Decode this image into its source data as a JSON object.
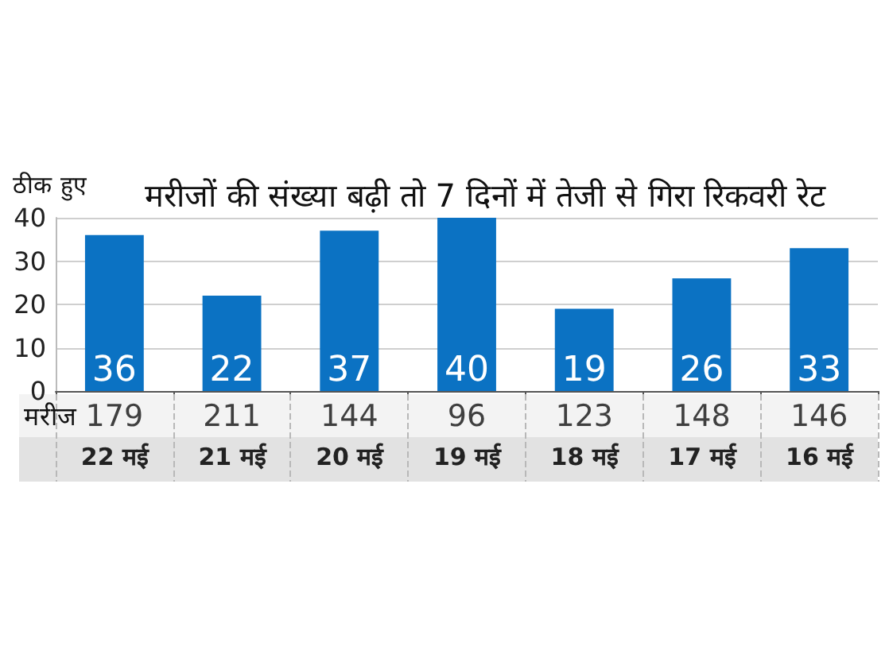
{
  "chart_data": [
    {
      "type": "bar",
      "title": "मरीजों की संख्या बढ़ी तो 7 दिनों में तेजी से गिरा रिकवरी रेट",
      "ylabel": "ठीक हुए",
      "categories": [
        "22 मई",
        "21 मई",
        "20 मई",
        "19 मई",
        "18 मई",
        "17 मई",
        "16 मई"
      ],
      "values": [
        36,
        22,
        37,
        40,
        19,
        26,
        33
      ],
      "color": "#0b72c3",
      "ylim": [
        0,
        40
      ],
      "yticks": [
        0,
        10,
        20,
        30,
        40
      ],
      "grid": "y",
      "data_labels": true
    },
    {
      "type": "other",
      "series": [
        {
          "name": "मरीज",
          "values": [
            179,
            211,
            144,
            96,
            123,
            148,
            146
          ]
        }
      ],
      "data_labels": true
    }
  ]
}
